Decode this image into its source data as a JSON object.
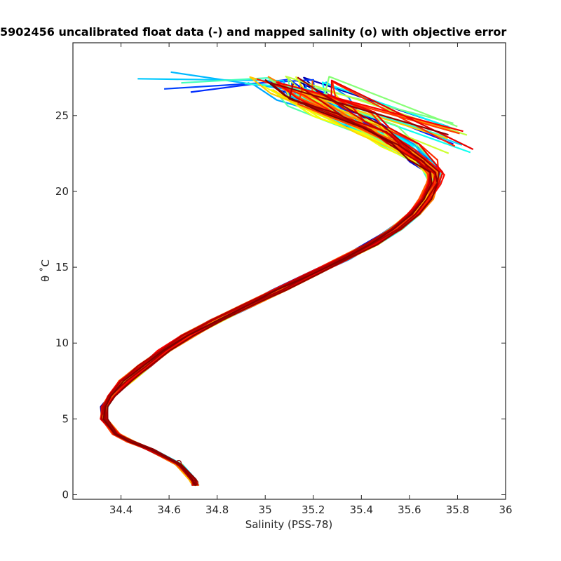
{
  "chart_data": {
    "type": "line",
    "title": "5902456 uncalibrated float data (-) and mapped salinity (o) with objective error",
    "xlabel": "Salinity (PSS-78)",
    "ylabel": "θ ˚C",
    "xlim": [
      34.2,
      36.0
    ],
    "ylim": [
      -0.3,
      29.8
    ],
    "xticks": [
      "34.4",
      "34.6",
      "34.8",
      "35",
      "35.2",
      "35.4",
      "35.6",
      "35.8",
      "36"
    ],
    "yticks": [
      "0",
      "5",
      "10",
      "15",
      "20",
      "25"
    ],
    "grid": false,
    "legend": "none",
    "colormap": "jet",
    "profile_count": 60,
    "mean_profile": [
      [
        34.71,
        0.6
      ],
      [
        34.7,
        1.0
      ],
      [
        34.64,
        2.0
      ],
      [
        34.52,
        3.0
      ],
      [
        34.44,
        3.5
      ],
      [
        34.38,
        4.0
      ],
      [
        34.33,
        5.0
      ],
      [
        34.33,
        5.8
      ],
      [
        34.36,
        6.5
      ],
      [
        34.42,
        7.5
      ],
      [
        34.5,
        8.5
      ],
      [
        34.58,
        9.5
      ],
      [
        34.68,
        10.5
      ],
      [
        34.8,
        11.5
      ],
      [
        34.93,
        12.5
      ],
      [
        35.06,
        13.5
      ],
      [
        35.19,
        14.5
      ],
      [
        35.32,
        15.5
      ],
      [
        35.44,
        16.5
      ],
      [
        35.54,
        17.5
      ],
      [
        35.62,
        18.5
      ],
      [
        35.67,
        19.5
      ],
      [
        35.7,
        20.5
      ],
      [
        35.7,
        21.2
      ],
      [
        35.65,
        22.0
      ],
      [
        35.56,
        23.0
      ],
      [
        35.45,
        24.0
      ],
      [
        35.32,
        25.0
      ],
      [
        35.2,
        26.0
      ],
      [
        35.12,
        27.0
      ]
    ],
    "mapped_points": [
      {
        "x": 34.64,
        "y": 2.1
      },
      {
        "x": 34.71,
        "y": 0.8
      }
    ],
    "colors": {
      "axis": "#262626",
      "marker": "#8b0000"
    }
  }
}
